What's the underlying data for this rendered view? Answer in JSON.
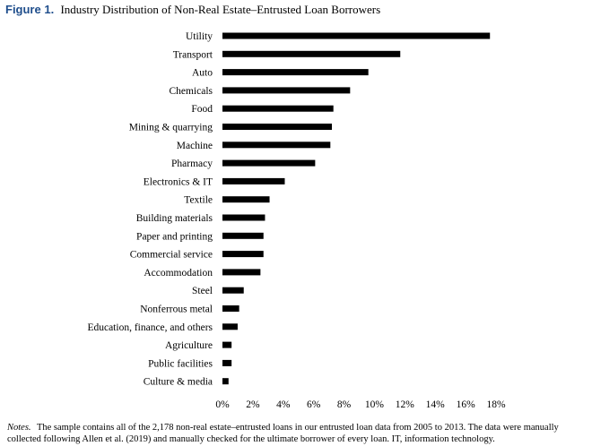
{
  "figure": {
    "label": "Figure 1.",
    "title": "Industry Distribution of Non-Real Estate–Entrusted Loan Borrowers",
    "notes_label": "Notes.",
    "notes_text": "The sample contains all of the 2,178 non-real estate–entrusted loans in our entrusted loan data from 2005 to 2013. The data were manually collected following Allen et al. (2019) and manually checked for the ultimate borrower of every loan. IT, information technology."
  },
  "chart_data": {
    "type": "bar",
    "orientation": "horizontal",
    "title": "",
    "xlabel": "",
    "ylabel": "",
    "categories": [
      "Utility",
      "Transport",
      "Auto",
      "Chemicals",
      "Food",
      "Mining & quarrying",
      "Machine",
      "Pharmacy",
      "Electronics & IT",
      "Textile",
      "Building materials",
      "Paper and printing",
      "Commercial service",
      "Accommodation",
      "Steel",
      "Nonferrous metal",
      "Education, finance, and others",
      "Agriculture",
      "Public facilities",
      "Culture & media"
    ],
    "values": [
      17.6,
      11.7,
      9.6,
      8.4,
      7.3,
      7.2,
      7.1,
      6.1,
      4.1,
      3.1,
      2.8,
      2.7,
      2.7,
      2.5,
      1.4,
      1.1,
      1.0,
      0.6,
      0.6,
      0.4
    ],
    "xlim": [
      0,
      18
    ],
    "xticks": [
      0,
      2,
      4,
      6,
      8,
      10,
      12,
      14,
      16,
      18
    ],
    "xtick_labels": [
      "0%",
      "2%",
      "4%",
      "6%",
      "8%",
      "10%",
      "12%",
      "14%",
      "16%",
      "18%"
    ],
    "grid": false,
    "legend": "none",
    "bar_color": "#000000"
  }
}
